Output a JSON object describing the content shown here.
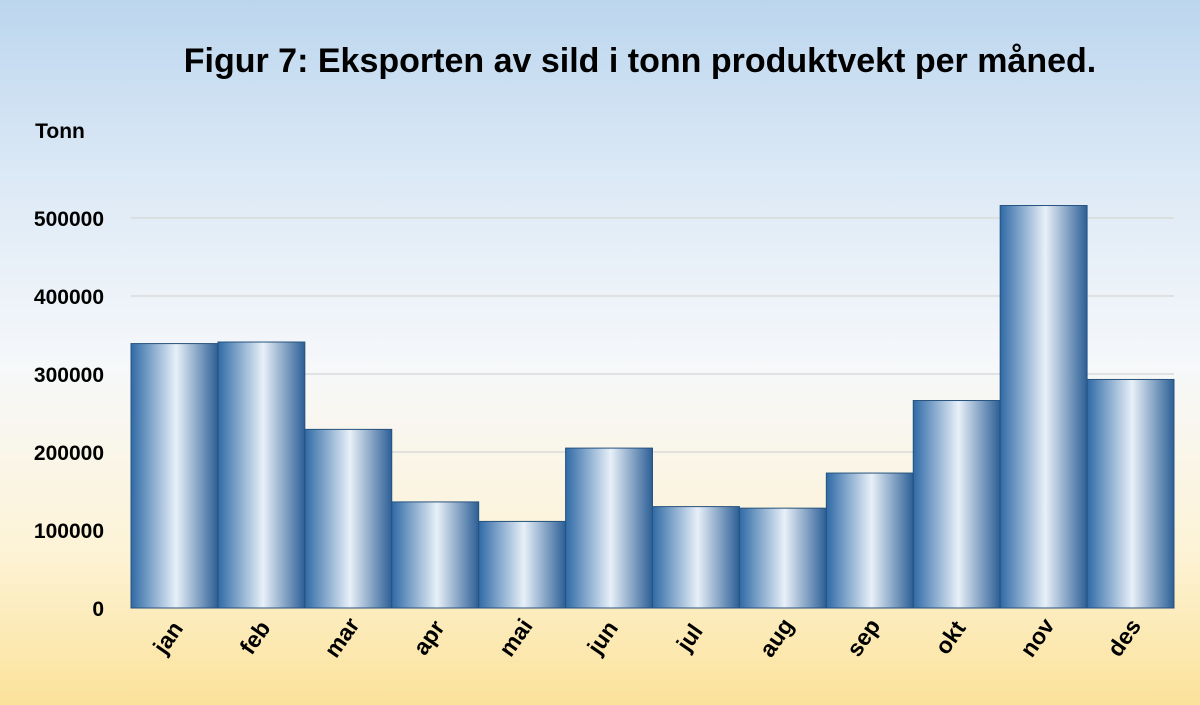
{
  "chart_data": {
    "type": "bar",
    "title": "Figur 7: Eksporten av sild i tonn produktvekt per måned.",
    "ylabel": "Tonn",
    "xlabel": "",
    "categories": [
      "jan",
      "feb",
      "mar",
      "apr",
      "mai",
      "jun",
      "jul",
      "aug",
      "sep",
      "okt",
      "nov",
      "des"
    ],
    "values": [
      339000,
      341000,
      229000,
      136000,
      111000,
      205000,
      130000,
      128000,
      173000,
      266000,
      516000,
      293000
    ],
    "ylim": [
      0,
      600000
    ],
    "yticks": [
      "0",
      "100000",
      "200000",
      "300000",
      "400000",
      "500000"
    ],
    "grid": true,
    "legend": "none",
    "colors": {
      "bar_dark": "#2f6aa6",
      "bar_light": "#e8f0f8",
      "bar_edge": "#27527e",
      "grid": "#d9d9d9"
    }
  }
}
